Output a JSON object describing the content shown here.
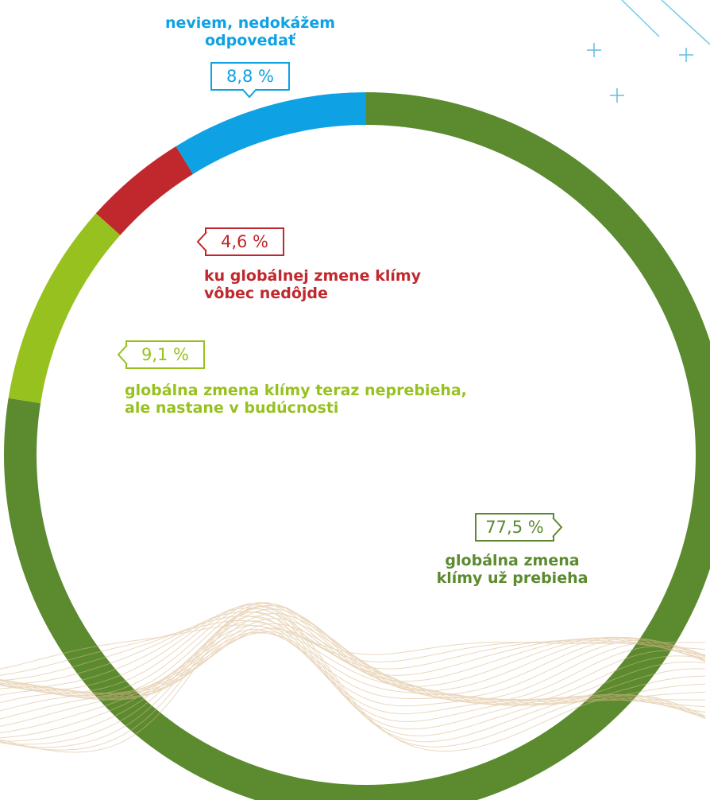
{
  "chart_data": {
    "type": "donut",
    "unit": "%",
    "slices": [
      {
        "label": "globálna zmena\nklímy už prebieha",
        "value": 77.5,
        "value_label": "77,5 %",
        "color": "#5b8a2f"
      },
      {
        "label": "globálna zmena klímy teraz neprebieha,\nale nastane v budúcnosti",
        "value": 9.1,
        "value_label": "9,1 %",
        "color": "#97c11f"
      },
      {
        "label": "ku globálnej zmene klímy\nvôbec nedôjde",
        "value": 4.6,
        "value_label": "4,6 %",
        "color": "#c0282d"
      },
      {
        "label": "neviem, nedokážem\nodpovedať",
        "value": 8.8,
        "value_label": "8,8 %",
        "color": "#0ea1e3"
      }
    ],
    "legend": "none"
  },
  "decor": {
    "line_color": "#1aa3d8",
    "wave_color": "#d9b98a"
  }
}
